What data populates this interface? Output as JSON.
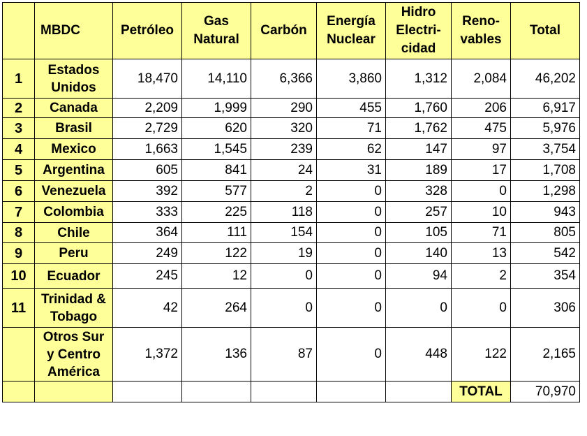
{
  "headers": [
    "",
    "MBDC",
    "Petróleo",
    "Gas Natural",
    "Carbón",
    "Energía Nuclear",
    "Hidro Electri-cidad",
    "Reno-vables",
    "Total"
  ],
  "rows": [
    {
      "rank": "1",
      "country": "Estados Unidos",
      "values": [
        "18,470",
        "14,110",
        "6,366",
        "3,860",
        "1,312",
        "2,084",
        "46,202"
      ]
    },
    {
      "rank": "2",
      "country": "Canada",
      "values": [
        "2,209",
        "1,999",
        "290",
        "455",
        "1,760",
        "206",
        "6,917"
      ]
    },
    {
      "rank": "3",
      "country": "Brasil",
      "values": [
        "2,729",
        "620",
        "320",
        "71",
        "1,762",
        "475",
        "5,976"
      ]
    },
    {
      "rank": "4",
      "country": "Mexico",
      "values": [
        "1,663",
        "1,545",
        "239",
        "62",
        "147",
        "97",
        "3,754"
      ]
    },
    {
      "rank": "5",
      "country": "Argentina",
      "values": [
        "605",
        "841",
        "24",
        "31",
        "189",
        "17",
        "1,708"
      ]
    },
    {
      "rank": "6",
      "country": "Venezuela",
      "values": [
        "392",
        "577",
        "2",
        "0",
        "328",
        "0",
        "1,298"
      ]
    },
    {
      "rank": "7",
      "country": "Colombia",
      "values": [
        "333",
        "225",
        "118",
        "0",
        "257",
        "10",
        "943"
      ]
    },
    {
      "rank": "8",
      "country": "Chile",
      "values": [
        "364",
        "111",
        "154",
        "0",
        "105",
        "71",
        "805"
      ]
    },
    {
      "rank": "9",
      "country": "Peru",
      "values": [
        "249",
        "122",
        "19",
        "0",
        "140",
        "13",
        "542"
      ]
    },
    {
      "rank": "10",
      "country": "Ecuador",
      "values": [
        "245",
        "12",
        "0",
        "0",
        "94",
        "2",
        "354"
      ]
    },
    {
      "rank": "11",
      "country": "Trinidad & Tobago",
      "values": [
        "42",
        "264",
        "0",
        "0",
        "0",
        "0",
        "306"
      ]
    },
    {
      "rank": "",
      "country": "Otros Sur y Centro América",
      "values": [
        "1,372",
        "136",
        "87",
        "0",
        "448",
        "122",
        "2,165"
      ]
    }
  ],
  "footer": {
    "label": "TOTAL",
    "value": "70,970"
  }
}
